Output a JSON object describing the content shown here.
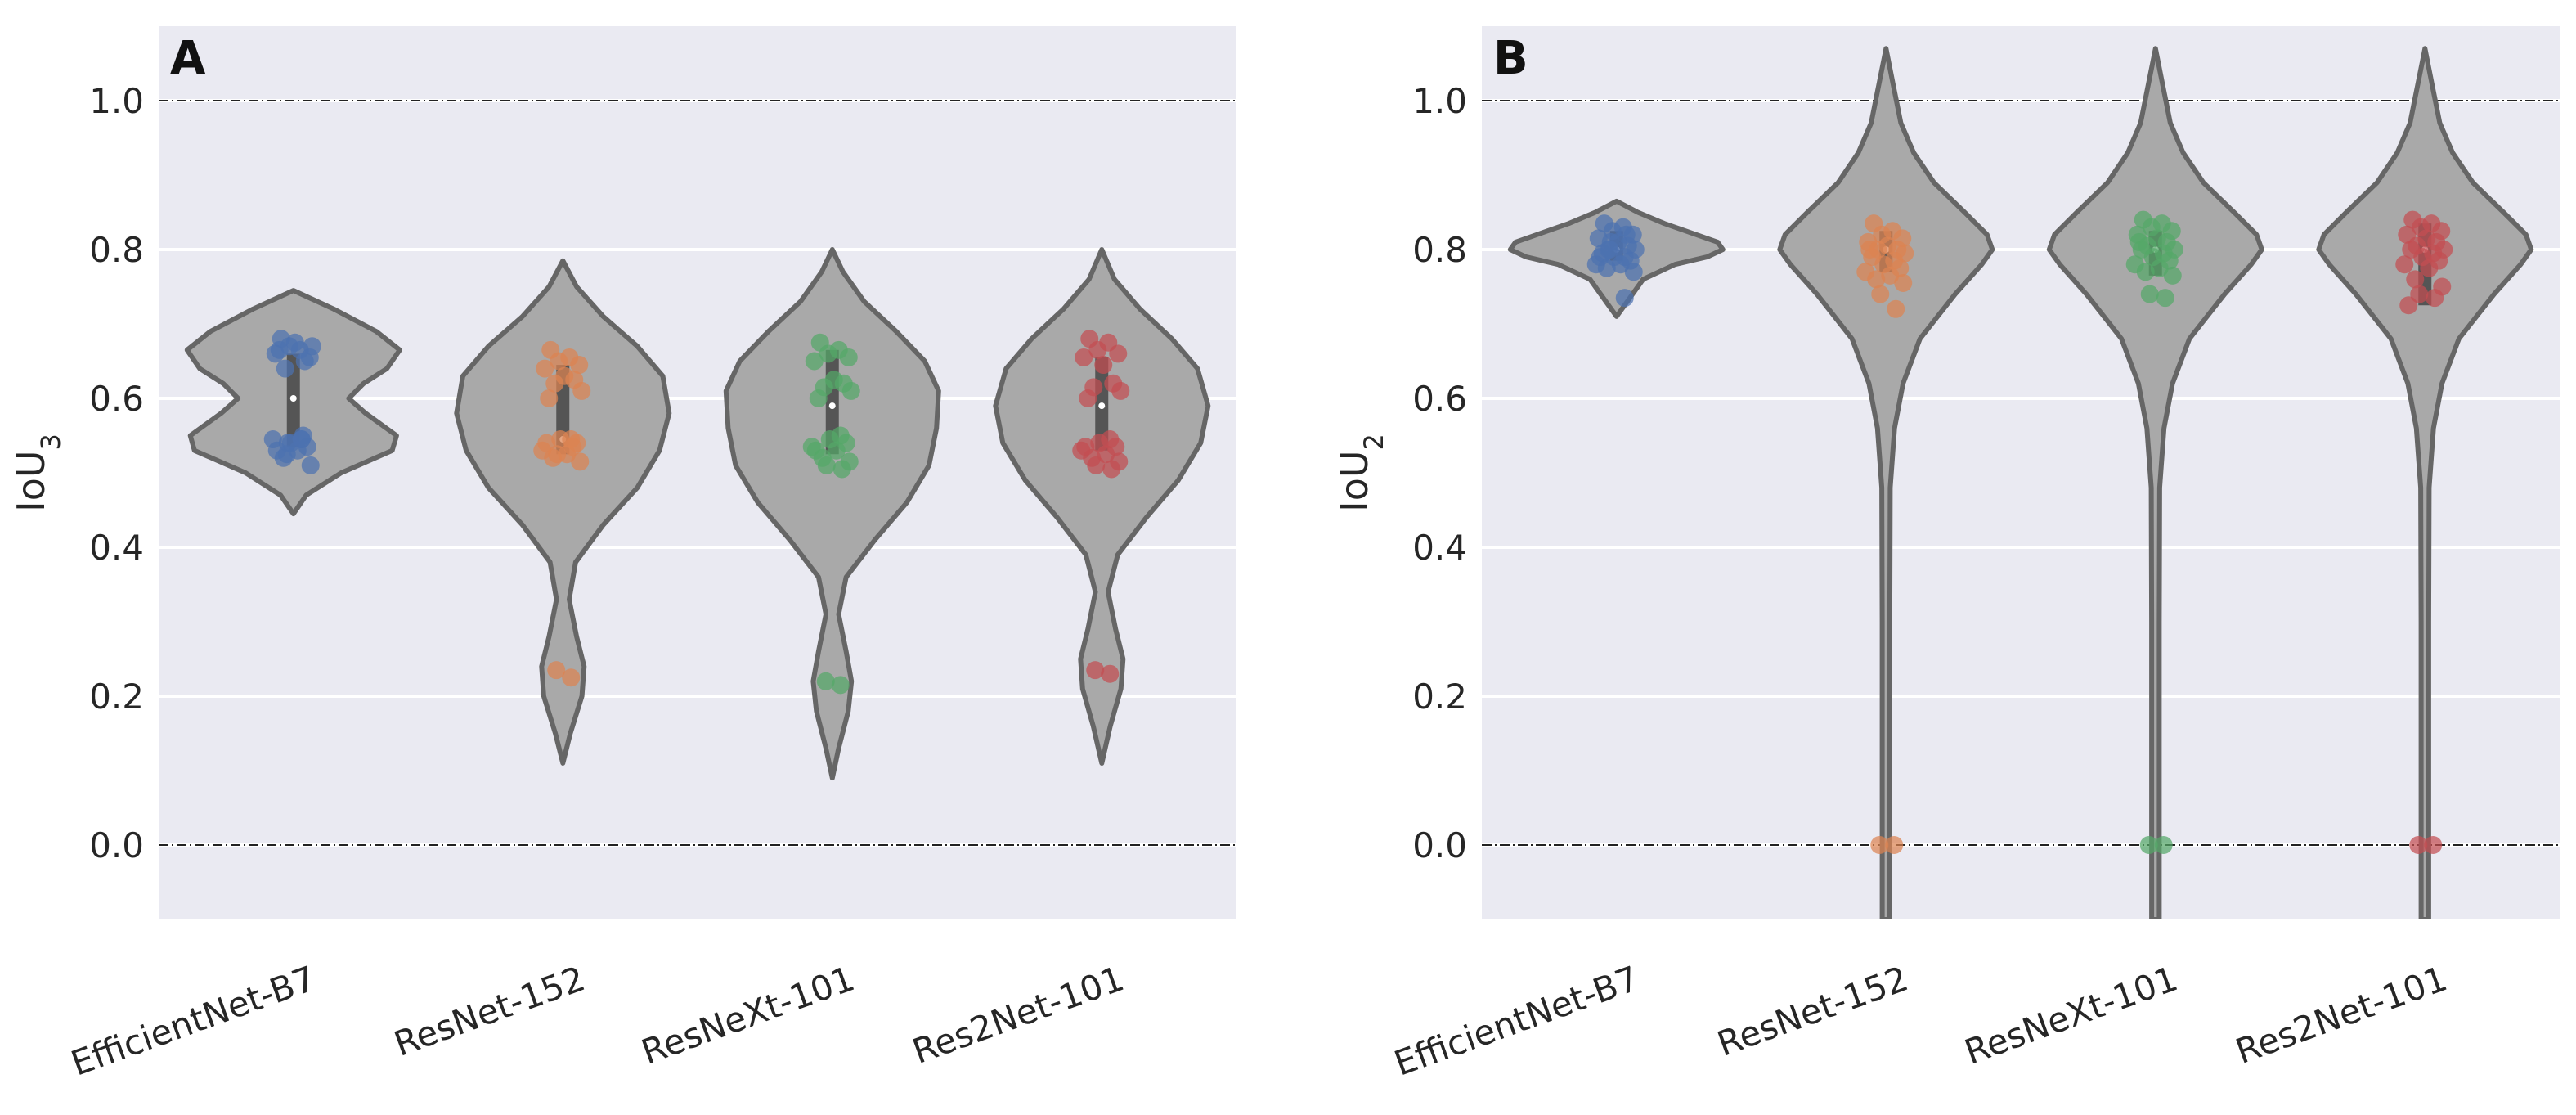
{
  "chart_data": [
    {
      "type": "violin",
      "panel_label": "A",
      "ylabel": "IoU",
      "ylabel_sub": "3",
      "ylim": [
        -0.1,
        1.1
      ],
      "yticks": [
        "0.0",
        "0.2",
        "0.4",
        "0.6",
        "0.8",
        "1.0"
      ],
      "ytick_values": [
        0.0,
        0.2,
        0.4,
        0.6,
        0.8,
        1.0
      ],
      "reference_lines": [
        0.0,
        1.0
      ],
      "categories": [
        "EfficientNet-B7",
        "ResNet-152",
        "ResNeXt-101",
        "Res2Net-101"
      ],
      "violins": [
        {
          "name": "EfficientNet-B7",
          "min": 0.445,
          "max": 0.745,
          "q1": 0.535,
          "median": 0.6,
          "q3": 0.66,
          "profile": [
            [
              0.445,
              0.0
            ],
            [
              0.47,
              0.12
            ],
            [
              0.5,
              0.45
            ],
            [
              0.53,
              0.93
            ],
            [
              0.55,
              0.97
            ],
            [
              0.58,
              0.68
            ],
            [
              0.6,
              0.52
            ],
            [
              0.62,
              0.66
            ],
            [
              0.64,
              0.88
            ],
            [
              0.665,
              1.0
            ],
            [
              0.69,
              0.78
            ],
            [
              0.72,
              0.38
            ],
            [
              0.745,
              0.0
            ]
          ]
        },
        {
          "name": "ResNet-152",
          "min": 0.11,
          "max": 0.785,
          "q1": 0.525,
          "median": 0.545,
          "q3": 0.645,
          "profile": [
            [
              0.11,
              0.0
            ],
            [
              0.15,
              0.07
            ],
            [
              0.2,
              0.18
            ],
            [
              0.24,
              0.2
            ],
            [
              0.28,
              0.13
            ],
            [
              0.33,
              0.06
            ],
            [
              0.38,
              0.12
            ],
            [
              0.43,
              0.38
            ],
            [
              0.48,
              0.7
            ],
            [
              0.53,
              0.91
            ],
            [
              0.58,
              1.0
            ],
            [
              0.63,
              0.94
            ],
            [
              0.67,
              0.7
            ],
            [
              0.71,
              0.38
            ],
            [
              0.75,
              0.13
            ],
            [
              0.785,
              0.0
            ]
          ]
        },
        {
          "name": "ResNeXt-101",
          "min": 0.09,
          "max": 0.8,
          "q1": 0.525,
          "median": 0.59,
          "q3": 0.665,
          "profile": [
            [
              0.09,
              0.0
            ],
            [
              0.13,
              0.06
            ],
            [
              0.18,
              0.15
            ],
            [
              0.22,
              0.18
            ],
            [
              0.26,
              0.13
            ],
            [
              0.31,
              0.06
            ],
            [
              0.36,
              0.13
            ],
            [
              0.41,
              0.4
            ],
            [
              0.46,
              0.7
            ],
            [
              0.51,
              0.91
            ],
            [
              0.56,
              0.98
            ],
            [
              0.61,
              1.0
            ],
            [
              0.65,
              0.87
            ],
            [
              0.69,
              0.6
            ],
            [
              0.73,
              0.3
            ],
            [
              0.77,
              0.1
            ],
            [
              0.8,
              0.0
            ]
          ]
        },
        {
          "name": "Res2Net-101",
          "min": 0.11,
          "max": 0.8,
          "q1": 0.53,
          "median": 0.59,
          "q3": 0.655,
          "profile": [
            [
              0.11,
              0.0
            ],
            [
              0.16,
              0.08
            ],
            [
              0.21,
              0.18
            ],
            [
              0.25,
              0.2
            ],
            [
              0.29,
              0.13
            ],
            [
              0.34,
              0.06
            ],
            [
              0.39,
              0.15
            ],
            [
              0.44,
              0.42
            ],
            [
              0.49,
              0.72
            ],
            [
              0.54,
              0.93
            ],
            [
              0.59,
              1.0
            ],
            [
              0.64,
              0.9
            ],
            [
              0.68,
              0.66
            ],
            [
              0.72,
              0.36
            ],
            [
              0.76,
              0.12
            ],
            [
              0.8,
              0.0
            ]
          ]
        }
      ],
      "points": [
        [
          0.68,
          0.665,
          0.67,
          0.655,
          0.66,
          0.675,
          0.65,
          0.64,
          0.67,
          0.665,
          0.545,
          0.54,
          0.535,
          0.545,
          0.53,
          0.52,
          0.51,
          0.54,
          0.55,
          0.53,
          0.525,
          0.545
        ],
        [
          0.665,
          0.655,
          0.65,
          0.645,
          0.64,
          0.63,
          0.625,
          0.62,
          0.61,
          0.6,
          0.545,
          0.545,
          0.54,
          0.53,
          0.525,
          0.52,
          0.515,
          0.525,
          0.535,
          0.54,
          0.235,
          0.225
        ],
        [
          0.675,
          0.665,
          0.66,
          0.655,
          0.65,
          0.625,
          0.62,
          0.615,
          0.61,
          0.6,
          0.55,
          0.545,
          0.54,
          0.535,
          0.53,
          0.52,
          0.515,
          0.51,
          0.505,
          0.53,
          0.22,
          0.215
        ],
        [
          0.68,
          0.675,
          0.665,
          0.66,
          0.655,
          0.645,
          0.62,
          0.615,
          0.61,
          0.6,
          0.545,
          0.54,
          0.535,
          0.53,
          0.525,
          0.52,
          0.515,
          0.51,
          0.505,
          0.535,
          0.235,
          0.23
        ]
      ],
      "point_colors": [
        "#4c72b0",
        "#dd8452",
        "#55a868",
        "#c44e52"
      ],
      "violin_fill": "#a9a9a9",
      "violin_edge": "#666666",
      "background": "#eaeaf2"
    },
    {
      "type": "violin",
      "panel_label": "B",
      "ylabel": "IoU",
      "ylabel_sub": "2",
      "ylim": [
        -0.1,
        1.1
      ],
      "yticks": [
        "0.0",
        "0.2",
        "0.4",
        "0.6",
        "0.8",
        "1.0"
      ],
      "ytick_values": [
        0.0,
        0.2,
        0.4,
        0.6,
        0.8,
        1.0
      ],
      "reference_lines": [
        0.0,
        1.0
      ],
      "categories": [
        "EfficientNet-B7",
        "ResNet-152",
        "ResNeXt-101",
        "Res2Net-101"
      ],
      "violins": [
        {
          "name": "EfficientNet-B7",
          "min": 0.71,
          "max": 0.865,
          "q1": 0.785,
          "median": 0.8,
          "q3": 0.825,
          "profile": [
            [
              0.71,
              0.0
            ],
            [
              0.73,
              0.1
            ],
            [
              0.76,
              0.25
            ],
            [
              0.78,
              0.55
            ],
            [
              0.79,
              0.85
            ],
            [
              0.8,
              1.0
            ],
            [
              0.81,
              0.95
            ],
            [
              0.82,
              0.75
            ],
            [
              0.835,
              0.45
            ],
            [
              0.85,
              0.2
            ],
            [
              0.865,
              0.0
            ]
          ]
        },
        {
          "name": "ResNet-152",
          "min": -0.1,
          "max": 1.07,
          "q1": 0.77,
          "median": 0.8,
          "q3": 0.825,
          "profile": [
            [
              -0.1,
              0.036
            ],
            [
              0.3,
              0.036
            ],
            [
              0.48,
              0.04
            ],
            [
              0.56,
              0.08
            ],
            [
              0.62,
              0.16
            ],
            [
              0.68,
              0.32
            ],
            [
              0.74,
              0.65
            ],
            [
              0.78,
              0.9
            ],
            [
              0.8,
              1.0
            ],
            [
              0.82,
              0.95
            ],
            [
              0.85,
              0.74
            ],
            [
              0.89,
              0.45
            ],
            [
              0.93,
              0.26
            ],
            [
              0.97,
              0.14
            ],
            [
              1.02,
              0.07
            ],
            [
              1.07,
              0.0
            ]
          ]
        },
        {
          "name": "ResNeXt-101",
          "min": -0.1,
          "max": 1.07,
          "q1": 0.765,
          "median": 0.8,
          "q3": 0.825,
          "profile": [
            [
              -0.1,
              0.036
            ],
            [
              0.3,
              0.036
            ],
            [
              0.48,
              0.04
            ],
            [
              0.56,
              0.08
            ],
            [
              0.62,
              0.16
            ],
            [
              0.68,
              0.32
            ],
            [
              0.74,
              0.65
            ],
            [
              0.78,
              0.9
            ],
            [
              0.8,
              1.0
            ],
            [
              0.82,
              0.95
            ],
            [
              0.85,
              0.74
            ],
            [
              0.89,
              0.45
            ],
            [
              0.93,
              0.26
            ],
            [
              0.97,
              0.14
            ],
            [
              1.02,
              0.07
            ],
            [
              1.07,
              0.0
            ]
          ]
        },
        {
          "name": "Res2Net-101",
          "min": -0.1,
          "max": 1.07,
          "q1": 0.725,
          "median": 0.8,
          "q3": 0.835,
          "profile": [
            [
              -0.1,
              0.036
            ],
            [
              0.3,
              0.036
            ],
            [
              0.48,
              0.04
            ],
            [
              0.56,
              0.08
            ],
            [
              0.62,
              0.16
            ],
            [
              0.68,
              0.32
            ],
            [
              0.74,
              0.65
            ],
            [
              0.78,
              0.9
            ],
            [
              0.8,
              1.0
            ],
            [
              0.82,
              0.95
            ],
            [
              0.85,
              0.74
            ],
            [
              0.89,
              0.45
            ],
            [
              0.93,
              0.26
            ],
            [
              0.97,
              0.14
            ],
            [
              1.02,
              0.07
            ],
            [
              1.07,
              0.0
            ]
          ]
        }
      ],
      "points": [
        [
          0.835,
          0.83,
          0.825,
          0.82,
          0.815,
          0.81,
          0.805,
          0.8,
          0.8,
          0.795,
          0.79,
          0.79,
          0.785,
          0.78,
          0.78,
          0.775,
          0.77,
          0.81,
          0.82,
          0.79,
          0.8,
          0.735
        ],
        [
          0.835,
          0.825,
          0.82,
          0.815,
          0.81,
          0.805,
          0.8,
          0.8,
          0.795,
          0.79,
          0.785,
          0.78,
          0.775,
          0.77,
          0.765,
          0.76,
          0.755,
          0.74,
          0.72,
          0.8,
          0.0,
          0.0
        ],
        [
          0.84,
          0.835,
          0.83,
          0.825,
          0.82,
          0.815,
          0.81,
          0.805,
          0.8,
          0.8,
          0.795,
          0.79,
          0.785,
          0.78,
          0.775,
          0.77,
          0.765,
          0.74,
          0.735,
          0.81,
          0.0,
          0.0
        ],
        [
          0.84,
          0.835,
          0.83,
          0.825,
          0.82,
          0.815,
          0.81,
          0.805,
          0.8,
          0.8,
          0.795,
          0.79,
          0.785,
          0.78,
          0.775,
          0.76,
          0.75,
          0.74,
          0.735,
          0.725,
          0.0,
          0.0
        ]
      ],
      "point_colors": [
        "#4c72b0",
        "#dd8452",
        "#55a868",
        "#c44e52"
      ],
      "violin_fill": "#a9a9a9",
      "violin_edge": "#666666",
      "background": "#eaeaf2"
    }
  ]
}
